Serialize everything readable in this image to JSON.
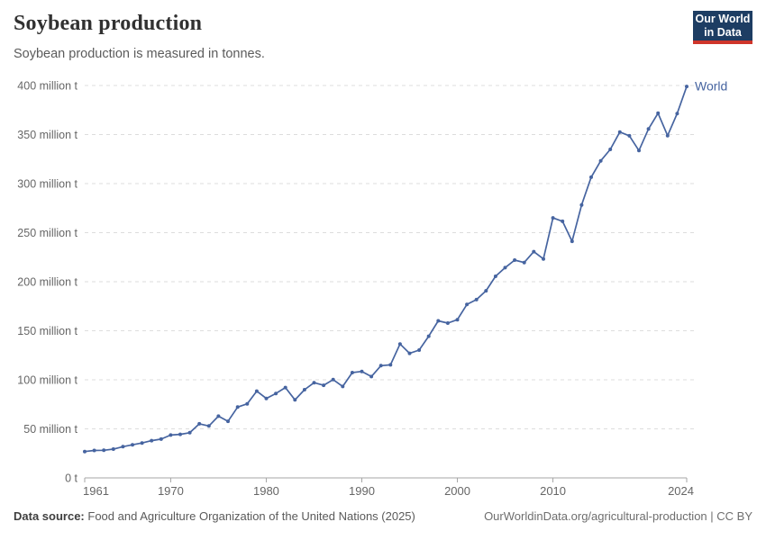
{
  "header": {
    "title": "Soybean production",
    "subtitle": "Soybean production is measured in tonnes.",
    "logo": {
      "line1": "Our World",
      "line2": "in Data"
    }
  },
  "colors": {
    "accent_line": "#4664a0",
    "logo_navy": "#1d3d63",
    "logo_red": "#cf352b",
    "grid": "#dddddd",
    "axis": "#a5a5a5",
    "tick_text": "#666666"
  },
  "chart_data": {
    "type": "line",
    "title": "Soybean production",
    "unit": "tonnes",
    "xlabel": "",
    "ylabel": "",
    "xlim": [
      1961,
      2024
    ],
    "ylim": [
      0,
      400
    ],
    "grid": "horizontal-dashed",
    "legend": "end-of-line-label",
    "x": [
      1961,
      1962,
      1963,
      1964,
      1965,
      1966,
      1967,
      1968,
      1969,
      1970,
      1971,
      1972,
      1973,
      1974,
      1975,
      1976,
      1977,
      1978,
      1979,
      1980,
      1981,
      1982,
      1983,
      1984,
      1985,
      1986,
      1987,
      1988,
      1989,
      1990,
      1991,
      1992,
      1993,
      1994,
      1995,
      1996,
      1997,
      1998,
      1999,
      2000,
      2001,
      2002,
      2003,
      2004,
      2005,
      2006,
      2007,
      2008,
      2009,
      2010,
      2011,
      2012,
      2013,
      2014,
      2015,
      2016,
      2017,
      2018,
      2019,
      2020,
      2021,
      2022,
      2023,
      2024
    ],
    "series": [
      {
        "name": "World",
        "values": [
          26.9,
          28.0,
          28.2,
          29.4,
          31.8,
          33.8,
          35.6,
          38.0,
          39.5,
          43.7,
          44.4,
          46.1,
          55.1,
          52.9,
          62.9,
          57.7,
          72.2,
          75.5,
          88.4,
          81.0,
          86.1,
          92.1,
          79.5,
          89.9,
          97.1,
          94.4,
          100.2,
          93.2,
          107.3,
          108.5,
          103.3,
          114.4,
          115.2,
          136.5,
          127.0,
          130.3,
          144.4,
          160.1,
          157.8,
          161.3,
          176.8,
          181.7,
          190.7,
          205.5,
          214.3,
          222.0,
          219.5,
          230.6,
          223.2,
          265.0,
          261.6,
          241.2,
          278.3,
          306.5,
          323.2,
          334.9,
          352.6,
          348.7,
          333.7,
          355.7,
          371.7,
          348.9,
          371.4,
          399.0
        ]
      }
    ],
    "xticks": [
      1961,
      1970,
      1980,
      1990,
      2000,
      2010,
      2024
    ],
    "yticks": [
      {
        "value": 0,
        "label": "0 t"
      },
      {
        "value": 50,
        "label": "50 million t"
      },
      {
        "value": 100,
        "label": "100 million t"
      },
      {
        "value": 150,
        "label": "150 million t"
      },
      {
        "value": 200,
        "label": "200 million t"
      },
      {
        "value": 250,
        "label": "250 million t"
      },
      {
        "value": 300,
        "label": "300 million t"
      },
      {
        "value": 350,
        "label": "350 million t"
      },
      {
        "value": 400,
        "label": "400 million t"
      }
    ]
  },
  "footer": {
    "source_label": "Data source:",
    "source_text": "Food and Agriculture Organization of the United Nations (2025)",
    "right_text": "OurWorldinData.org/agricultural-production | CC BY"
  }
}
